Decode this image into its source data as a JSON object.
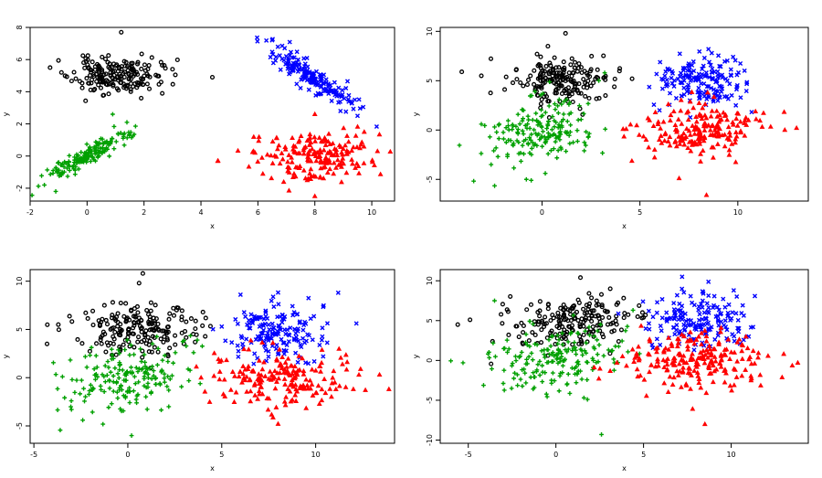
{
  "chart_data": [
    {
      "type": "scatter",
      "xlabel": "x",
      "ylabel": "y",
      "xlim": [
        -2,
        10.8
      ],
      "ylim": [
        -2.8,
        8
      ],
      "xticks": [
        -2,
        0,
        2,
        4,
        6,
        8,
        10
      ],
      "yticks": [
        -2,
        0,
        2,
        4,
        6,
        8
      ],
      "series": [
        {
          "marker": "circle",
          "color": "#000000",
          "center": [
            1.0,
            5.0
          ],
          "spread": [
            0.75,
            0.55
          ],
          "rho": 0.0,
          "n": 190,
          "seed": 11,
          "extra": [
            [
              -1.3,
              5.5
            ],
            [
              -0.9,
              5.2
            ],
            [
              2.6,
              4.6
            ],
            [
              3.0,
              5.4
            ],
            [
              4.4,
              4.9
            ],
            [
              1.2,
              7.7
            ]
          ]
        },
        {
          "marker": "plus",
          "color": "#00a000",
          "center": [
            0.0,
            0.0
          ],
          "spread": [
            0.75,
            0.75
          ],
          "rho": 0.92,
          "n": 170,
          "seed": 23,
          "extra": [
            [
              -1.5,
              -1.8
            ],
            [
              -1.1,
              -2.2
            ],
            [
              1.4,
              2.1
            ],
            [
              0.9,
              2.6
            ]
          ]
        },
        {
          "marker": "cross",
          "color": "#0000ff",
          "center": [
            8.0,
            4.8
          ],
          "spread": [
            0.75,
            0.95
          ],
          "rho": -0.9,
          "n": 170,
          "seed": 37,
          "extra": [
            [
              6.5,
              7.2
            ],
            [
              9.5,
              2.5
            ],
            [
              8.9,
              2.8
            ]
          ]
        },
        {
          "marker": "triangle",
          "color": "#ff0000",
          "center": [
            8.0,
            0.0
          ],
          "spread": [
            1.0,
            0.75
          ],
          "rho": 0.0,
          "n": 190,
          "seed": 53,
          "extra": [
            [
              4.6,
              -0.3
            ],
            [
              5.9,
              0.2
            ],
            [
              10.2,
              0.3
            ],
            [
              8.0,
              2.6
            ],
            [
              8.0,
              -2.5
            ]
          ]
        }
      ]
    },
    {
      "type": "scatter",
      "xlabel": "x",
      "ylabel": "y",
      "xlim": [
        -5.2,
        13.6
      ],
      "ylim": [
        -7.2,
        10.4
      ],
      "xticks": [
        0,
        5,
        10
      ],
      "yticks": [
        -5,
        0,
        5,
        10
      ],
      "series": [
        {
          "marker": "circle",
          "color": "#000000",
          "center": [
            0.8,
            5.0
          ],
          "spread": [
            1.3,
            1.1
          ],
          "rho": 0.0,
          "n": 190,
          "seed": 61,
          "extra": [
            [
              -4.1,
              5.9
            ],
            [
              -3.1,
              5.5
            ],
            [
              4.6,
              5.2
            ],
            [
              1.2,
              9.8
            ],
            [
              0.3,
              8.5
            ]
          ]
        },
        {
          "marker": "plus",
          "color": "#00a000",
          "center": [
            0.0,
            0.0
          ],
          "spread": [
            1.4,
            1.7
          ],
          "rho": 0.3,
          "n": 190,
          "seed": 71,
          "extra": [
            [
              -3.1,
              0.6
            ],
            [
              -2.6,
              -3.5
            ],
            [
              -0.8,
              -5.0
            ],
            [
              2.9,
              5.0
            ],
            [
              3.2,
              5.8
            ]
          ]
        },
        {
          "marker": "cross",
          "color": "#0000ff",
          "center": [
            8.0,
            5.0
          ],
          "spread": [
            1.2,
            1.3
          ],
          "rho": 0.0,
          "n": 170,
          "seed": 83,
          "extra": [
            [
              6.0,
              2.0
            ],
            [
              9.9,
              2.5
            ],
            [
              8.5,
              8.2
            ]
          ]
        },
        {
          "marker": "triangle",
          "color": "#ff0000",
          "center": [
            8.0,
            0.0
          ],
          "spread": [
            1.5,
            1.4
          ],
          "rho": 0.0,
          "n": 190,
          "seed": 97,
          "extra": [
            [
              4.3,
              0.1
            ],
            [
              12.4,
              0.0
            ],
            [
              13.0,
              0.2
            ],
            [
              8.4,
              -6.6
            ],
            [
              7.0,
              -4.9
            ]
          ]
        }
      ]
    },
    {
      "type": "scatter",
      "xlabel": "x",
      "ylabel": "y",
      "xlim": [
        -5.2,
        14.2
      ],
      "ylim": [
        -6.8,
        11.2
      ],
      "xticks": [
        -5,
        0,
        5,
        10
      ],
      "yticks": [
        -5,
        0,
        5,
        10
      ],
      "series": [
        {
          "marker": "circle",
          "color": "#000000",
          "center": [
            0.5,
            5.0
          ],
          "spread": [
            1.6,
            1.3
          ],
          "rho": 0.0,
          "n": 190,
          "seed": 103,
          "extra": [
            [
              -4.3,
              3.5
            ],
            [
              -3.7,
              5.5
            ],
            [
              4.0,
              6.8
            ],
            [
              0.8,
              10.8
            ],
            [
              0.6,
              9.8
            ]
          ]
        },
        {
          "marker": "plus",
          "color": "#00a000",
          "center": [
            0.0,
            0.0
          ],
          "spread": [
            1.6,
            1.8
          ],
          "rho": 0.2,
          "n": 190,
          "seed": 113,
          "extra": [
            [
              -3.0,
              -3.3
            ],
            [
              0.2,
              -6.0
            ],
            [
              -2.4,
              -4.4
            ],
            [
              3.7,
              3.9
            ],
            [
              3.5,
              2.6
            ]
          ]
        },
        {
          "marker": "cross",
          "color": "#0000ff",
          "center": [
            8.0,
            5.0
          ],
          "spread": [
            1.4,
            1.5
          ],
          "rho": 0.0,
          "n": 170,
          "seed": 127,
          "extra": [
            [
              5.0,
              5.3
            ],
            [
              11.2,
              8.8
            ],
            [
              6.0,
              8.6
            ],
            [
              10.4,
              2.2
            ]
          ]
        },
        {
          "marker": "triangle",
          "color": "#ff0000",
          "center": [
            8.0,
            0.0
          ],
          "spread": [
            1.8,
            1.5
          ],
          "rho": 0.0,
          "n": 190,
          "seed": 131,
          "extra": [
            [
              3.9,
              0.0
            ],
            [
              13.4,
              0.3
            ],
            [
              13.9,
              -1.2
            ],
            [
              8.0,
              -4.8
            ],
            [
              4.9,
              0.6
            ]
          ]
        }
      ]
    },
    {
      "type": "scatter",
      "xlabel": "x",
      "ylabel": "y",
      "xlim": [
        -6.6,
        14.4
      ],
      "ylim": [
        -10.4,
        11.4
      ],
      "xticks": [
        -5,
        0,
        5,
        10
      ],
      "yticks": [
        -10,
        -5,
        0,
        5,
        10
      ],
      "series": [
        {
          "marker": "circle",
          "color": "#000000",
          "center": [
            1.0,
            5.0
          ],
          "spread": [
            2.0,
            1.6
          ],
          "rho": 0.0,
          "n": 190,
          "seed": 139,
          "extra": [
            [
              -5.6,
              4.5
            ],
            [
              -4.9,
              5.1
            ],
            [
              3.1,
              9.0
            ],
            [
              1.4,
              10.4
            ],
            [
              5.0,
              5.4
            ]
          ]
        },
        {
          "marker": "plus",
          "color": "#00a000",
          "center": [
            0.0,
            0.0
          ],
          "spread": [
            1.9,
            2.1
          ],
          "rho": 0.2,
          "n": 190,
          "seed": 149,
          "extra": [
            [
              -3.5,
              7.5
            ],
            [
              -5.3,
              -0.3
            ],
            [
              2.6,
              -9.3
            ],
            [
              1.8,
              -4.9
            ],
            [
              4.4,
              6.3
            ]
          ]
        },
        {
          "marker": "cross",
          "color": "#0000ff",
          "center": [
            8.0,
            5.0
          ],
          "spread": [
            1.5,
            1.7
          ],
          "rho": 0.0,
          "n": 170,
          "seed": 157,
          "extra": [
            [
              5.3,
              6.2
            ],
            [
              11.0,
              3.0
            ],
            [
              7.2,
              10.5
            ],
            [
              10.5,
              2.1
            ]
          ]
        },
        {
          "marker": "triangle",
          "color": "#ff0000",
          "center": [
            8.0,
            0.0
          ],
          "spread": [
            2.2,
            1.8
          ],
          "rho": 0.0,
          "n": 210,
          "seed": 163,
          "extra": [
            [
              3.8,
              0.5
            ],
            [
              13.0,
              0.8
            ],
            [
              13.8,
              -0.3
            ],
            [
              8.5,
              -8.0
            ],
            [
              7.8,
              -6.1
            ]
          ]
        }
      ]
    }
  ]
}
